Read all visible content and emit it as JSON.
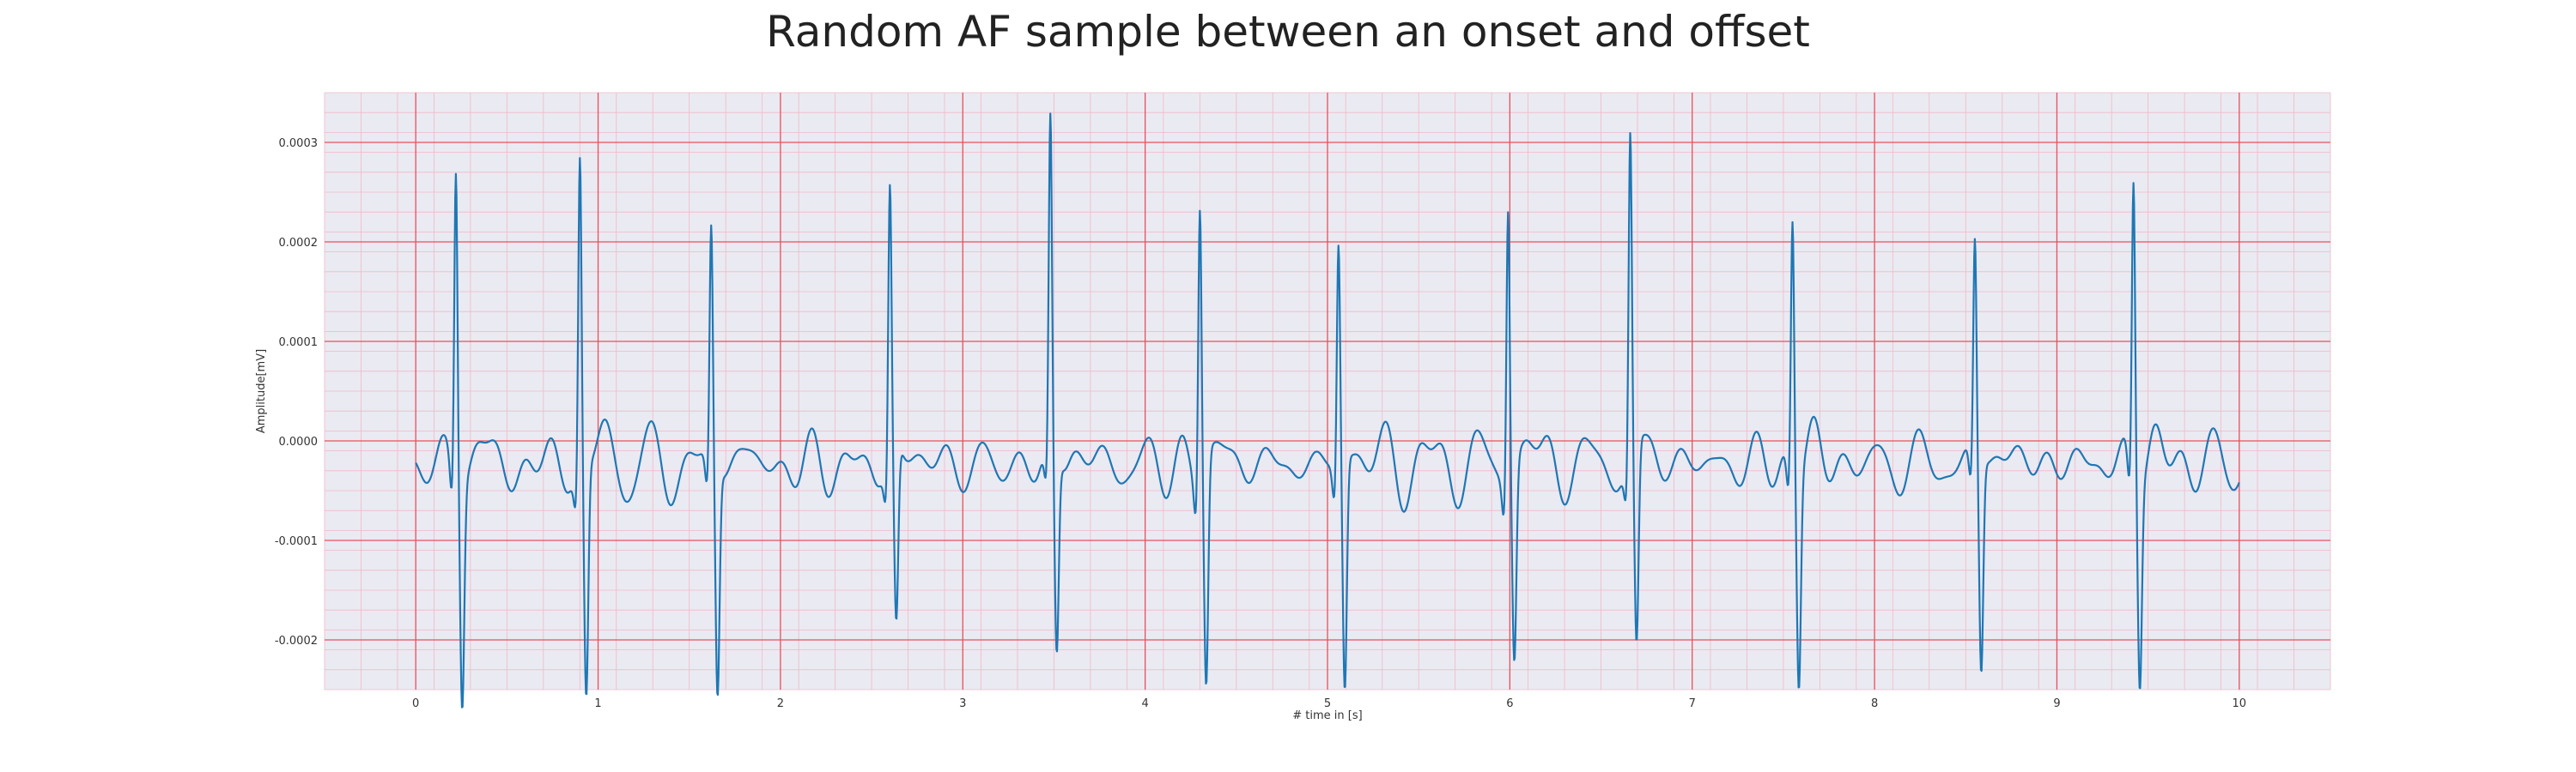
{
  "chart_data": {
    "type": "line",
    "title": "Random AF sample between an onset and offset",
    "xlabel": "# time in [s]",
    "ylabel": "Amplitude[mV]",
    "xlim": [
      -0.5,
      10.5
    ],
    "ylim": [
      -0.00025,
      0.00035
    ],
    "x_ticks": [
      0,
      1,
      2,
      3,
      4,
      5,
      6,
      7,
      8,
      9,
      10
    ],
    "x_tick_labels": [
      "0",
      "1",
      "2",
      "3",
      "4",
      "5",
      "6",
      "7",
      "8",
      "9",
      "10"
    ],
    "y_ticks": [
      -0.0002,
      -0.0001,
      0.0,
      0.0001,
      0.0002,
      0.0003
    ],
    "y_tick_labels": [
      "-0.0002",
      "-0.0001",
      "0.0000",
      "0.0001",
      "0.0002",
      "0.0003"
    ],
    "grid": true,
    "minor_grid": true,
    "colors": {
      "line": "#1f77b4",
      "plot_background": "#eaeaf2",
      "major_grid": "#e8505b",
      "minor_grid": "#f2b8c6"
    },
    "series": [
      {
        "peaks": [
          {
            "x": 0.22,
            "r": 0.0003,
            "s": -0.00021
          },
          {
            "x": 0.9,
            "r": 0.0003,
            "s": -0.000225
          },
          {
            "x": 1.62,
            "r": 0.00022,
            "s": -0.00022
          },
          {
            "x": 2.6,
            "r": 0.000258,
            "s": -0.00017
          },
          {
            "x": 3.48,
            "r": 0.00032,
            "s": -0.000188
          },
          {
            "x": 4.3,
            "r": 0.000265,
            "s": -0.000215
          },
          {
            "x": 5.06,
            "r": 0.00021,
            "s": -0.000222
          },
          {
            "x": 5.99,
            "r": 0.000265,
            "s": -0.000183
          },
          {
            "x": 6.66,
            "r": 0.000313,
            "s": -0.000193
          },
          {
            "x": 7.55,
            "r": 0.000238,
            "s": -0.000202
          },
          {
            "x": 8.55,
            "r": 0.0002,
            "s": -0.000205
          },
          {
            "x": 9.42,
            "r": 0.000278,
            "s": -0.000193
          }
        ],
        "baseline_start": -2.5e-05,
        "baseline_end": -2.2e-05,
        "x_start": 0,
        "x_end": 10
      }
    ]
  }
}
